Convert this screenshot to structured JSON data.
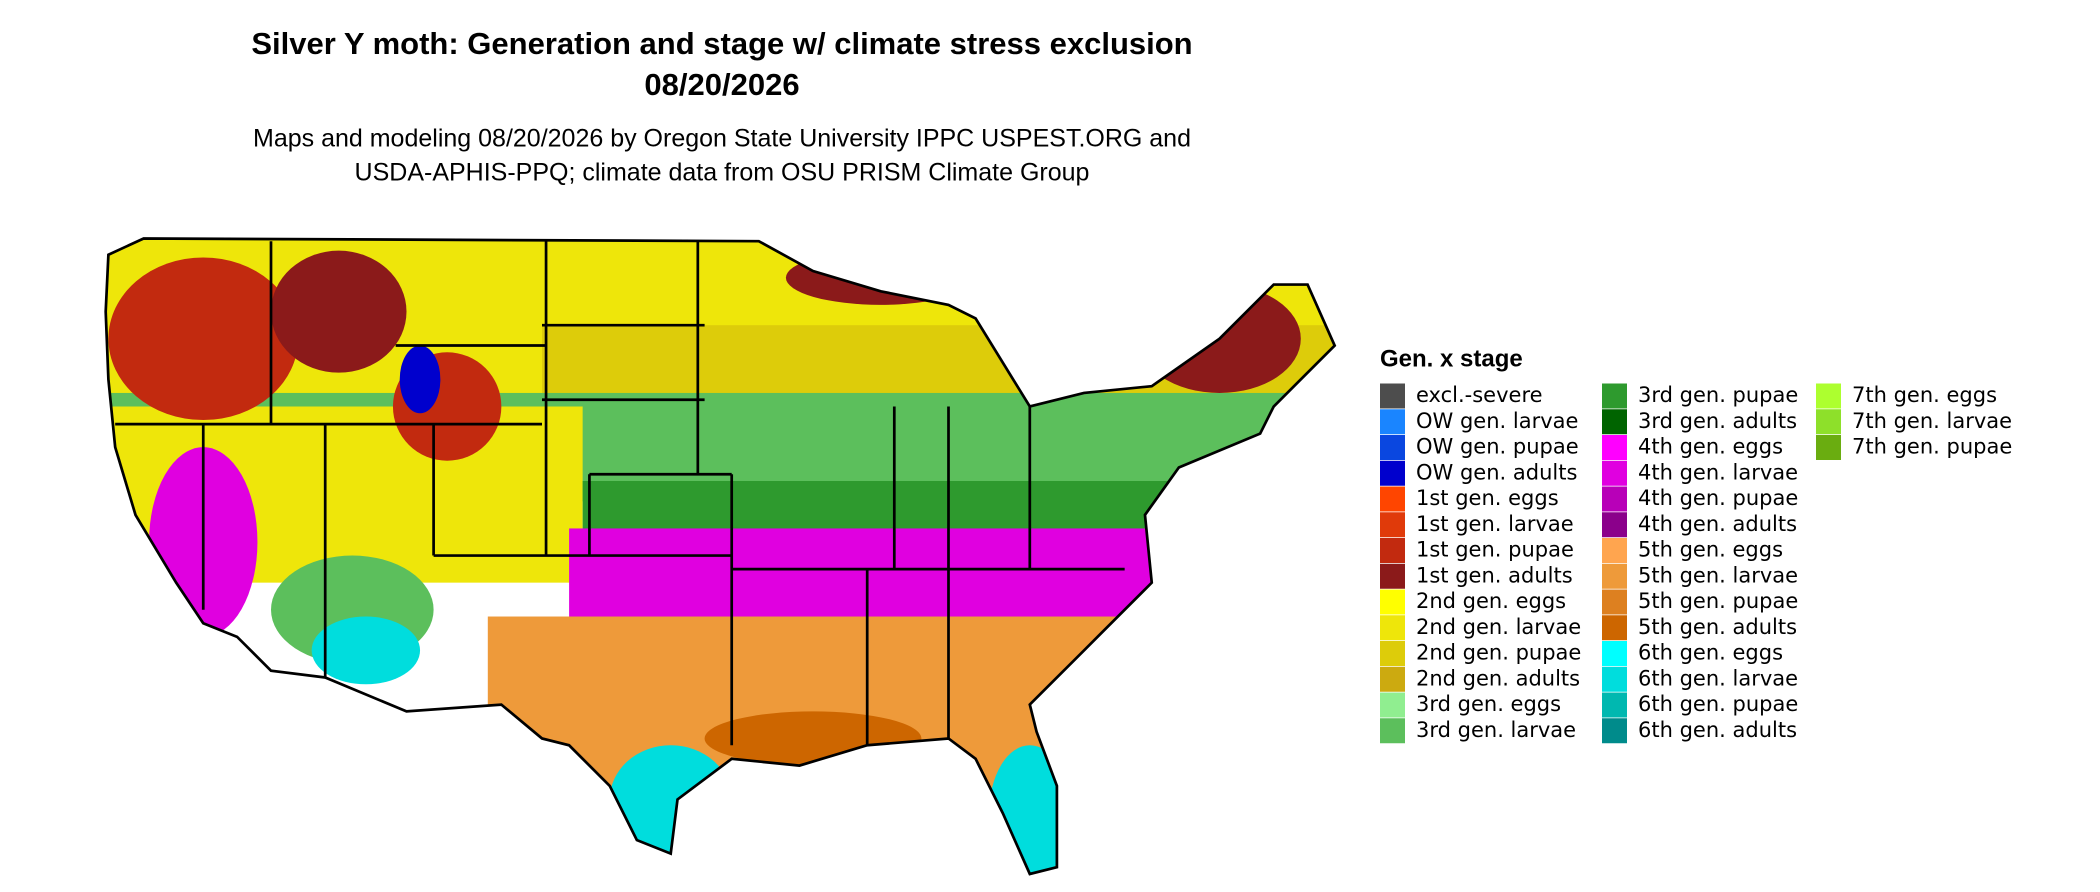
{
  "title": [
    "Silver Y moth: Generation and stage w/ climate stress exclusion",
    "08/20/2026"
  ],
  "subtitle": [
    "Maps and modeling 08/20/2026 by Oregon State University IPPC USPEST.ORG and",
    "USDA-APHIS-PPQ; climate data from OSU PRISM Climate Group"
  ],
  "legend": {
    "title": "Gen. x stage",
    "items": [
      {
        "label": "excl.-severe",
        "color": "#4d4d4d"
      },
      {
        "label": "OW gen. larvae",
        "color": "#1a85ff"
      },
      {
        "label": "OW gen. pupae",
        "color": "#0a47e0"
      },
      {
        "label": "OW gen. adults",
        "color": "#0000cd"
      },
      {
        "label": "1st gen. eggs",
        "color": "#ff4500"
      },
      {
        "label": "1st gen. larvae",
        "color": "#e03a0a"
      },
      {
        "label": "1st gen. pupae",
        "color": "#c22a0f"
      },
      {
        "label": "1st gen. adults",
        "color": "#8b1a1a"
      },
      {
        "label": "2nd gen. eggs",
        "color": "#ffff00"
      },
      {
        "label": "2nd gen. larvae",
        "color": "#eee60a"
      },
      {
        "label": "2nd gen. pupae",
        "color": "#ddcc0a"
      },
      {
        "label": "2nd gen. adults",
        "color": "#ccaa10"
      },
      {
        "label": "3rd gen. eggs",
        "color": "#90ee90"
      },
      {
        "label": "3rd gen. larvae",
        "color": "#5cbf5c"
      },
      {
        "label": "3rd gen. pupae",
        "color": "#2e9a2e"
      },
      {
        "label": "3rd gen. adults",
        "color": "#006400"
      },
      {
        "label": "4th gen. eggs",
        "color": "#ff00ff"
      },
      {
        "label": "4th gen. larvae",
        "color": "#e000e0"
      },
      {
        "label": "4th gen. pupae",
        "color": "#b800b8"
      },
      {
        "label": "4th gen. adults",
        "color": "#8b008b"
      },
      {
        "label": "5th gen. eggs",
        "color": "#ffa54f"
      },
      {
        "label": "5th gen. larvae",
        "color": "#ee9a3a"
      },
      {
        "label": "5th gen. pupae",
        "color": "#dd8020"
      },
      {
        "label": "5th gen. adults",
        "color": "#cd6600"
      },
      {
        "label": "6th gen. eggs",
        "color": "#00ffff"
      },
      {
        "label": "6th gen. larvae",
        "color": "#00dddd"
      },
      {
        "label": "6th gen. pupae",
        "color": "#00b8b0"
      },
      {
        "label": "6th gen. adults",
        "color": "#008b8b"
      },
      {
        "label": "7th gen. eggs",
        "color": "#adff2f"
      },
      {
        "label": "7th gen. larvae",
        "color": "#8ee02a"
      },
      {
        "label": "7th gen. pupae",
        "color": "#6aad10"
      }
    ]
  }
}
